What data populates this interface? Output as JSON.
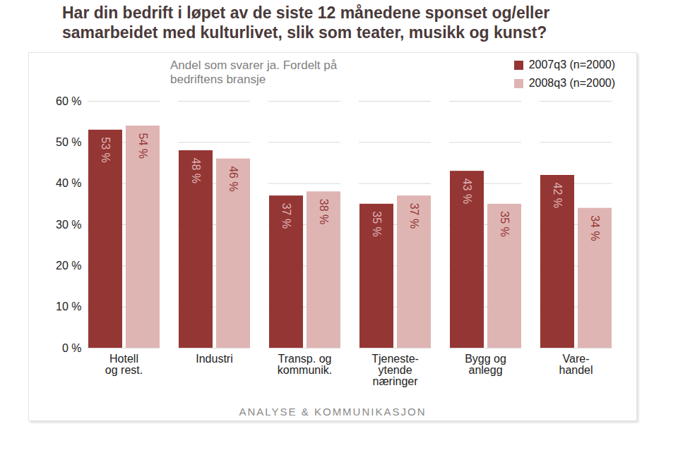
{
  "chart_data": {
    "type": "bar",
    "title": "Har din bedrift i løpet av de siste 12 månedene sponset og/eller samarbeidet med kulturlivet, slik som teater, musikk og kunst?",
    "subtitle": "Andel som svarer ja. Fordelt på bedriftens bransje",
    "footer": "ANALYSE & KOMMUNIKASJON",
    "categories": [
      "Hotell\nog rest.",
      "Industri",
      "Transp. og\nkommunik.",
      "Tjeneste-\nytende\nnæringer",
      "Bygg og\nanlegg",
      "Vare-\nhandel"
    ],
    "series": [
      {
        "name": "2007q3 (n=2000)",
        "color": "#943634",
        "values": [
          53,
          48,
          37,
          35,
          43,
          42
        ],
        "value_labels": [
          "53 %",
          "48 %",
          "37 %",
          "35 %",
          "43 %",
          "42 %"
        ]
      },
      {
        "name": "2008q3 (n=2000)",
        "color": "#dfb5b4",
        "values": [
          54,
          46,
          38,
          37,
          35,
          34
        ],
        "value_labels": [
          "54 %",
          "46 %",
          "38 %",
          "37 %",
          "35 %",
          "34 %"
        ]
      }
    ],
    "ylim": [
      0,
      60
    ],
    "yticks": [
      {
        "value": 0,
        "label": "0 %"
      },
      {
        "value": 10,
        "label": "10 %"
      },
      {
        "value": 20,
        "label": "20 %"
      },
      {
        "value": 30,
        "label": "30 %"
      },
      {
        "value": 40,
        "label": "40 %"
      },
      {
        "value": 50,
        "label": "50 %"
      },
      {
        "value": 60,
        "label": "60 %"
      }
    ],
    "grid": true,
    "legend": "top-right",
    "data_labels": true
  }
}
